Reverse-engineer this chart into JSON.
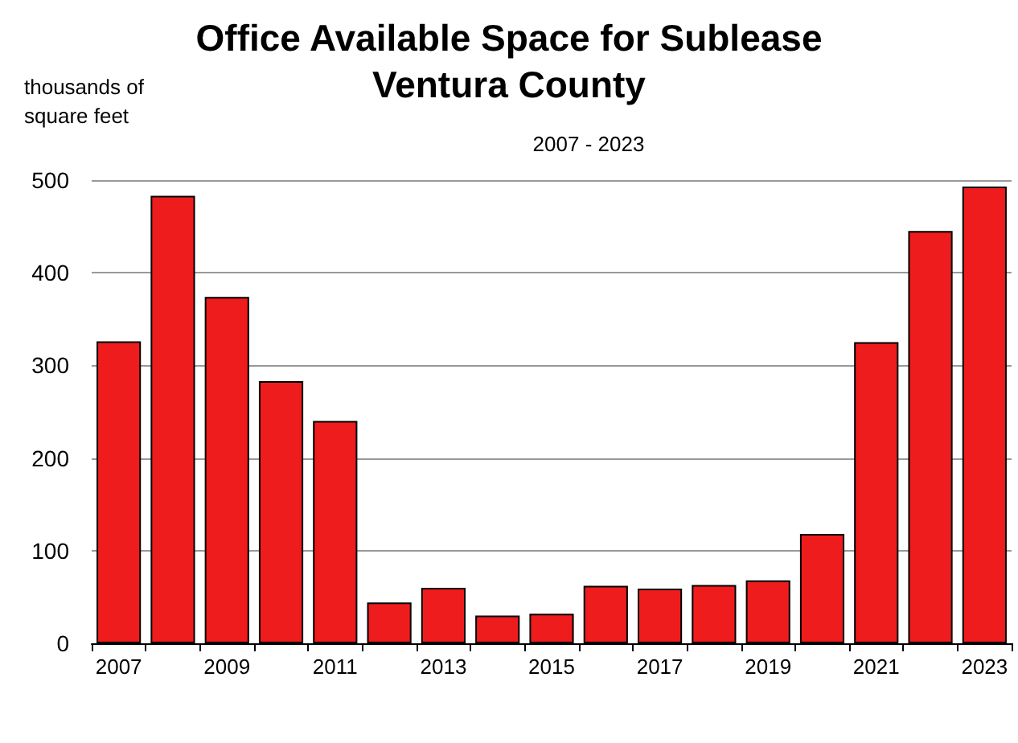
{
  "chart_data": {
    "type": "bar",
    "title": "Office Available Space for Sublease\nVentura County",
    "subtitle": "2007 - 2023",
    "ylabel": "thousands of\nsquare feet",
    "categories": [
      "2007",
      null,
      "2009",
      null,
      "2011",
      null,
      "2013",
      null,
      "2015",
      null,
      "2017",
      null,
      "2019",
      null,
      "2021",
      null,
      "2023"
    ],
    "values": [
      326,
      483,
      374,
      283,
      240,
      44,
      60,
      30,
      32,
      62,
      59,
      63,
      68,
      118,
      325,
      445,
      493
    ],
    "color": "#ee1c1c",
    "ylim": [
      0,
      500
    ],
    "yticks": [
      0,
      100,
      200,
      300,
      400,
      500
    ],
    "grid": "y"
  }
}
